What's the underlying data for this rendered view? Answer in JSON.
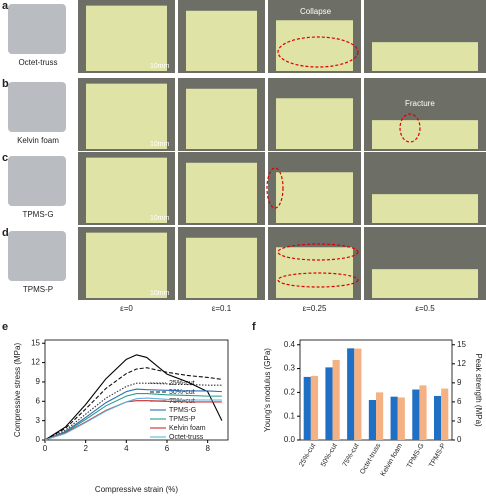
{
  "photo_panels": {
    "rows": [
      {
        "letter": "a",
        "label": "Octet-truss"
      },
      {
        "letter": "b",
        "label": "Kelvin foam"
      },
      {
        "letter": "c",
        "label": "TPMS-G"
      },
      {
        "letter": "d",
        "label": "TPMS-P"
      }
    ],
    "strains": [
      "ε=0",
      "ε=0.1",
      "ε=0.25",
      "ε=0.5"
    ],
    "scale_bar": "10mm",
    "collapse": "Collapse",
    "fracture": "Fracture"
  },
  "chart_data": [
    {
      "type": "line",
      "panel_label": "e",
      "x_label": "Compressive strain (%)",
      "y_label": "Compressive stress (MPa)",
      "x": [
        0,
        1,
        2,
        3,
        4,
        4.5,
        5,
        6,
        7,
        8,
        8.7
      ],
      "xlim": [
        0,
        9
      ],
      "xticks": [
        0,
        2,
        4,
        6,
        8
      ],
      "ylim": [
        0,
        15.5
      ],
      "yticks": [
        0,
        3,
        6,
        9,
        12,
        15
      ],
      "series": [
        {
          "name": "25%-cut",
          "color": "#333333",
          "dash": "dotted",
          "values": [
            0,
            1.5,
            4,
            6.5,
            8.3,
            8.8,
            8.8,
            8.7,
            8.6,
            8.5,
            8.5
          ]
        },
        {
          "name": "50%-cut",
          "color": "#111111",
          "dash": "dashed",
          "values": [
            0,
            1.8,
            4.8,
            8,
            10.3,
            11,
            11.2,
            10.5,
            10,
            9.7,
            9.4
          ]
        },
        {
          "name": "75%-cut",
          "color": "#000000",
          "dash": "solid",
          "values": [
            0,
            2,
            5.5,
            9.5,
            12.5,
            13.2,
            12.8,
            10.2,
            9,
            7.5,
            3
          ]
        },
        {
          "name": "TPMS-G",
          "color": "#2f6db5",
          "dash": "solid",
          "values": [
            0,
            1.3,
            3.5,
            5.8,
            7.5,
            7.9,
            7.8,
            7.7,
            7.6,
            7.6,
            7.5
          ]
        },
        {
          "name": "TPMS-P",
          "color": "#2a9d8f",
          "dash": "solid",
          "values": [
            0,
            1.2,
            3.2,
            5.3,
            6.8,
            7.2,
            7.2,
            7,
            6.9,
            6.8,
            6.8
          ]
        },
        {
          "name": "Kelvin foam",
          "color": "#d62828",
          "dash": "solid",
          "values": [
            0,
            1.1,
            2.8,
            4.6,
            5.9,
            6.1,
            6.1,
            6,
            5.9,
            5.9,
            5.9
          ]
        },
        {
          "name": "Octet-truss",
          "color": "#5fb3e0",
          "dash": "solid",
          "values": [
            0,
            1,
            2.7,
            4.5,
            5.9,
            6.4,
            6.5,
            6.3,
            6.2,
            6.2,
            6.2
          ]
        }
      ]
    },
    {
      "type": "bar",
      "panel_label": "f",
      "y_label": "Young's modulus (GPa)",
      "y2_label": "Peak strength (MPa)",
      "categories": [
        "25%-cut",
        "50%-cut",
        "75%-cut",
        "Octet-truss",
        "Kelvin foam",
        "TPMS-G",
        "TPMS-P"
      ],
      "ylim": [
        0,
        0.42
      ],
      "yticks": [
        {
          "value": 0,
          "label": "0.0"
        },
        0.1,
        0.2,
        0.3,
        0.4
      ],
      "y2lim": [
        0,
        15.75
      ],
      "y2ticks": [
        0,
        3,
        6,
        9,
        12,
        15
      ],
      "series": [
        {
          "color": "#1f6fc5",
          "axis": "y",
          "values": [
            0.265,
            0.305,
            0.385,
            0.168,
            0.182,
            0.212,
            0.185
          ]
        },
        {
          "color": "#f4b183",
          "axis": "y2",
          "values": [
            10.1,
            12.6,
            14.4,
            7.5,
            6.7,
            8.6,
            8.1
          ]
        }
      ]
    }
  ]
}
